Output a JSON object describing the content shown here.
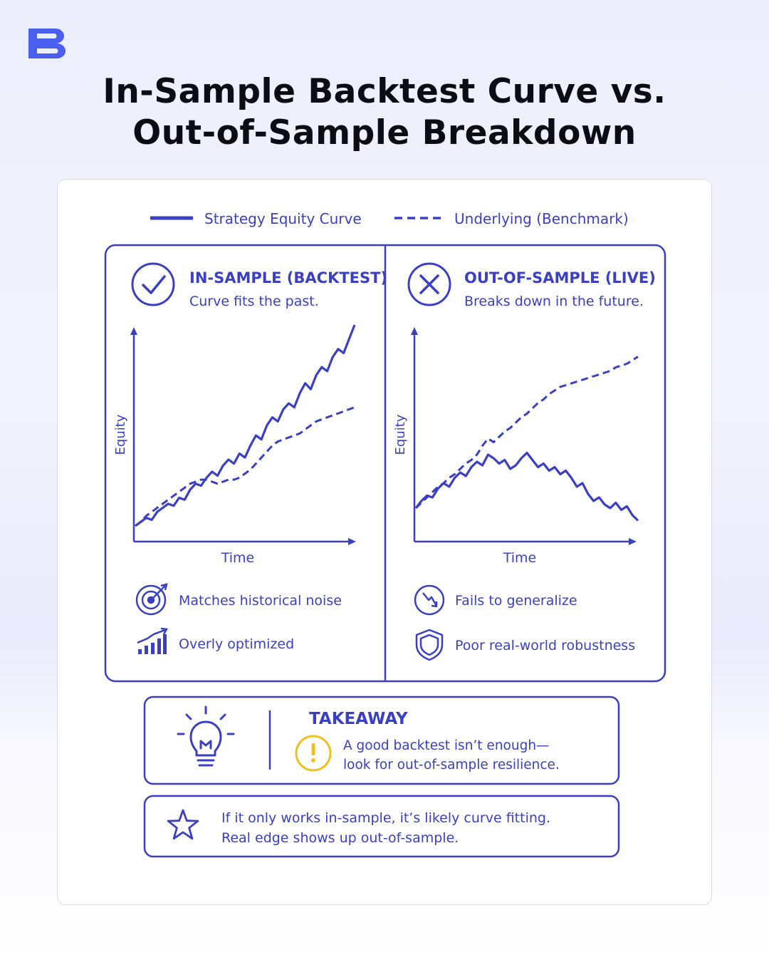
{
  "brand": {
    "logo_icon": "s-logo-icon",
    "color": "#4a5ef0"
  },
  "title": {
    "line1": "In-Sample Backtest Curve vs.",
    "line2": "Out-of-Sample Breakdown"
  },
  "legend": {
    "strategy": "Strategy Equity Curve",
    "benchmark": "Underlying (Benchmark)"
  },
  "colors": {
    "ink": "#3a3fc3",
    "accent_yellow": "#f0c020"
  },
  "panels": {
    "in_sample": {
      "icon": "check-circle-icon",
      "title": "IN-SAMPLE (BACKTEST)",
      "subtitle": "Curve fits the past.",
      "ylabel": "Equity",
      "xlabel": "Time",
      "points": [
        {
          "icon": "target-icon",
          "text": "Matches historical noise"
        },
        {
          "icon": "rising-bars-icon",
          "text": "Overly optimized"
        }
      ]
    },
    "out_of_sample": {
      "icon": "x-circle-icon",
      "title": "OUT-OF-SAMPLE (LIVE)",
      "subtitle": "Breaks down in the future.",
      "ylabel": "Equity",
      "xlabel": "Time",
      "points": [
        {
          "icon": "down-arrow-circle-icon",
          "text": "Fails to generalize"
        },
        {
          "icon": "shield-icon",
          "text": "Poor real-world robustness"
        }
      ]
    }
  },
  "takeaway": {
    "icon": "lightbulb-icon",
    "warning_icon": "exclamation-circle-icon",
    "heading": "TAKEAWAY",
    "line1": "A good backtest isn’t enough—",
    "line2": "look for out-of-sample resilience."
  },
  "note": {
    "icon": "star-icon",
    "line1": "If it only works in-sample, it’s likely curve fitting.",
    "line2": "Real edge shows up out-of-sample."
  },
  "chart_data": [
    {
      "type": "line",
      "panel": "in_sample",
      "xlabel": "Time",
      "ylabel": "Equity",
      "x": [
        0,
        1,
        2,
        3,
        4,
        5,
        6,
        7,
        8,
        9,
        10,
        11,
        12,
        13,
        14,
        15,
        16,
        17,
        18,
        19,
        20,
        21,
        22,
        23,
        24,
        25,
        26,
        27,
        28,
        29,
        30,
        31,
        32,
        33,
        34,
        35,
        36,
        37,
        38,
        39,
        40
      ],
      "series": [
        {
          "name": "Strategy Equity Curve",
          "style": "solid",
          "values": [
            0,
            2,
            4,
            3,
            7,
            9,
            11,
            10,
            14,
            13,
            18,
            21,
            20,
            24,
            27,
            25,
            30,
            33,
            31,
            36,
            34,
            40,
            45,
            43,
            50,
            54,
            52,
            58,
            61,
            59,
            66,
            71,
            68,
            75,
            79,
            77,
            84,
            88,
            86,
            93,
            100
          ]
        },
        {
          "name": "Underlying (Benchmark)",
          "style": "dashed",
          "values": [
            0,
            2,
            5,
            7,
            9,
            11,
            13,
            15,
            17,
            19,
            21,
            22,
            23,
            23,
            22,
            21,
            22,
            23,
            23,
            24,
            26,
            28,
            31,
            34,
            37,
            40,
            42,
            43,
            44,
            45,
            46,
            48,
            50,
            52,
            53,
            54,
            55,
            56,
            57,
            58,
            59
          ]
        }
      ]
    },
    {
      "type": "line",
      "panel": "out_of_sample",
      "xlabel": "Time",
      "ylabel": "Equity",
      "x": [
        0,
        1,
        2,
        3,
        4,
        5,
        6,
        7,
        8,
        9,
        10,
        11,
        12,
        13,
        14,
        15,
        16,
        17,
        18,
        19,
        20,
        21,
        22,
        23,
        24,
        25,
        26,
        27,
        28,
        29,
        30,
        31,
        32,
        33,
        34,
        35,
        36,
        37,
        38,
        39,
        40
      ],
      "series": [
        {
          "name": "Strategy Equity Curve",
          "style": "solid",
          "values": [
            10,
            14,
            17,
            16,
            21,
            24,
            22,
            27,
            30,
            28,
            33,
            36,
            34,
            40,
            38,
            35,
            37,
            32,
            34,
            38,
            41,
            37,
            33,
            35,
            31,
            33,
            29,
            31,
            27,
            22,
            24,
            18,
            14,
            16,
            12,
            10,
            13,
            9,
            11,
            6,
            3
          ]
        },
        {
          "name": "Underlying (Benchmark)",
          "style": "dashed",
          "values": [
            10,
            13,
            16,
            19,
            22,
            24,
            27,
            29,
            32,
            35,
            37,
            40,
            45,
            49,
            47,
            50,
            53,
            55,
            58,
            61,
            63,
            66,
            69,
            71,
            74,
            76,
            78,
            79,
            80,
            81,
            82,
            83,
            84,
            85,
            86,
            87,
            89,
            90,
            91,
            93,
            95
          ]
        }
      ]
    }
  ]
}
